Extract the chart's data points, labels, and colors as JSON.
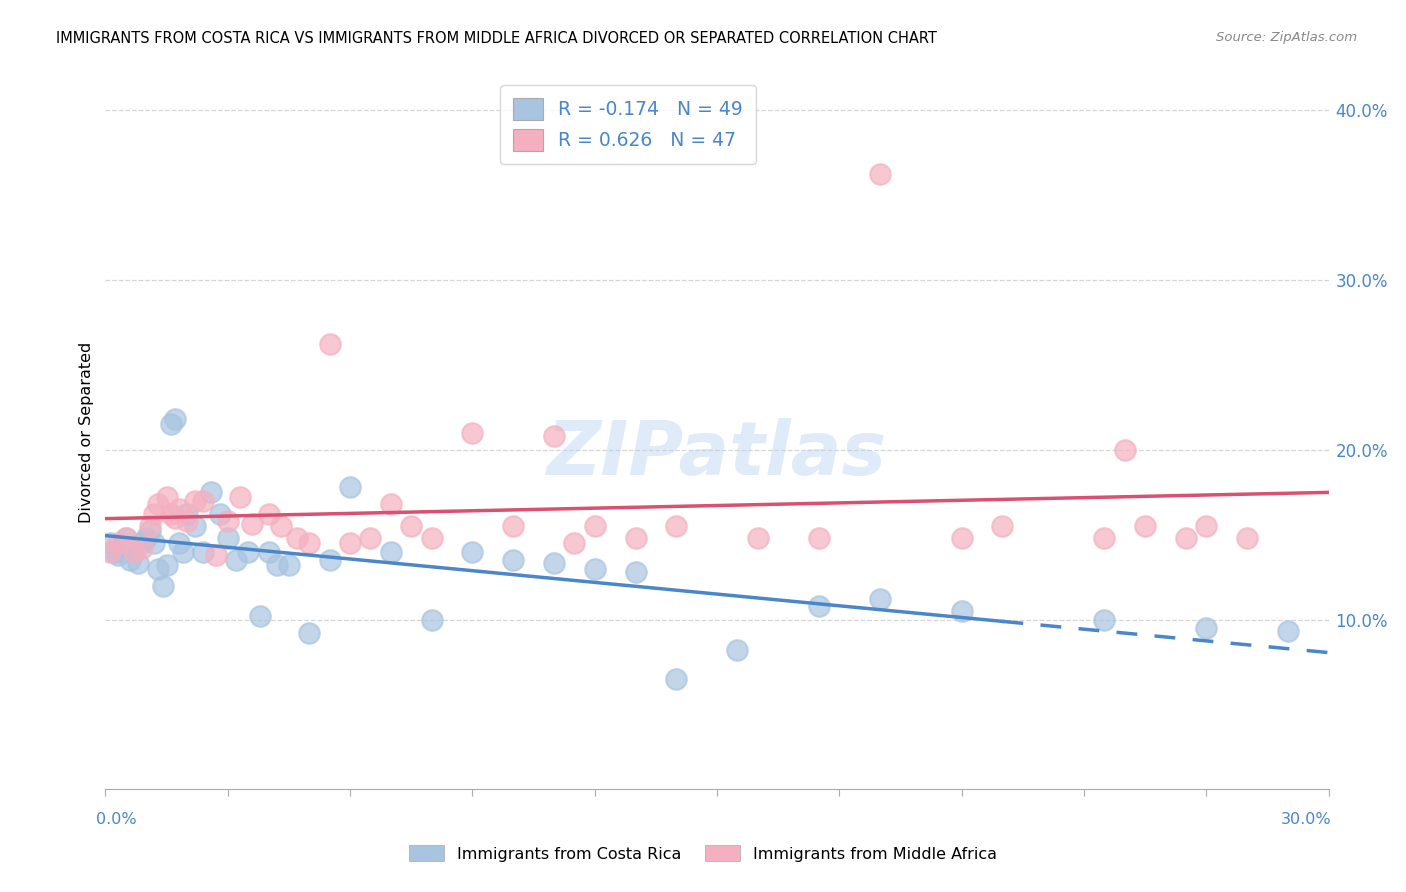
{
  "title": "IMMIGRANTS FROM COSTA RICA VS IMMIGRANTS FROM MIDDLE AFRICA DIVORCED OR SEPARATED CORRELATION CHART",
  "source": "Source: ZipAtlas.com",
  "ylabel": "Divorced or Separated",
  "legend_label_blue": "Immigrants from Costa Rica",
  "legend_label_pink": "Immigrants from Middle Africa",
  "blue_R": "-0.174",
  "blue_N": "49",
  "pink_R": "0.626",
  "pink_N": "47",
  "blue_fill": "#a8c4e0",
  "pink_fill": "#f4b0c0",
  "blue_line_color": "#4a86c8",
  "pink_line_color": "#d95070",
  "text_blue": "#4a86c8",
  "watermark": "ZIPatlas",
  "xlim": [
    0.0,
    0.3
  ],
  "ylim": [
    0.0,
    0.42
  ],
  "yticks": [
    0.1,
    0.2,
    0.3,
    0.4
  ],
  "ytick_labels": [
    "10.0%",
    "20.0%",
    "30.0%",
    "40.0%"
  ],
  "blue_x": [
    0.001,
    0.002,
    0.003,
    0.004,
    0.005,
    0.006,
    0.007,
    0.008,
    0.009,
    0.01,
    0.011,
    0.012,
    0.013,
    0.014,
    0.015,
    0.016,
    0.017,
    0.018,
    0.019,
    0.02,
    0.022,
    0.024,
    0.026,
    0.028,
    0.03,
    0.032,
    0.035,
    0.038,
    0.04,
    0.042,
    0.045,
    0.05,
    0.055,
    0.06,
    0.07,
    0.08,
    0.09,
    0.1,
    0.11,
    0.12,
    0.13,
    0.14,
    0.155,
    0.175,
    0.19,
    0.21,
    0.245,
    0.27,
    0.29
  ],
  "blue_y": [
    0.145,
    0.14,
    0.138,
    0.143,
    0.148,
    0.135,
    0.14,
    0.133,
    0.145,
    0.148,
    0.152,
    0.145,
    0.13,
    0.12,
    0.132,
    0.215,
    0.218,
    0.145,
    0.14,
    0.162,
    0.155,
    0.14,
    0.175,
    0.162,
    0.148,
    0.135,
    0.14,
    0.102,
    0.14,
    0.132,
    0.132,
    0.092,
    0.135,
    0.178,
    0.14,
    0.1,
    0.14,
    0.135,
    0.133,
    0.13,
    0.128,
    0.065,
    0.082,
    0.108,
    0.112,
    0.105,
    0.1,
    0.095,
    0.093
  ],
  "pink_x": [
    0.001,
    0.003,
    0.005,
    0.007,
    0.009,
    0.011,
    0.012,
    0.013,
    0.015,
    0.016,
    0.017,
    0.018,
    0.02,
    0.022,
    0.024,
    0.027,
    0.03,
    0.033,
    0.036,
    0.04,
    0.043,
    0.047,
    0.05,
    0.055,
    0.06,
    0.065,
    0.07,
    0.075,
    0.08,
    0.09,
    0.1,
    0.11,
    0.115,
    0.12,
    0.13,
    0.14,
    0.16,
    0.175,
    0.19,
    0.21,
    0.22,
    0.245,
    0.255,
    0.265,
    0.27,
    0.28,
    0.25
  ],
  "pink_y": [
    0.14,
    0.145,
    0.148,
    0.14,
    0.142,
    0.155,
    0.162,
    0.168,
    0.172,
    0.162,
    0.16,
    0.165,
    0.158,
    0.17,
    0.17,
    0.138,
    0.158,
    0.172,
    0.156,
    0.162,
    0.155,
    0.148,
    0.145,
    0.262,
    0.145,
    0.148,
    0.168,
    0.155,
    0.148,
    0.21,
    0.155,
    0.208,
    0.145,
    0.155,
    0.148,
    0.155,
    0.148,
    0.148,
    0.362,
    0.148,
    0.155,
    0.148,
    0.155,
    0.148,
    0.155,
    0.148,
    0.2
  ]
}
